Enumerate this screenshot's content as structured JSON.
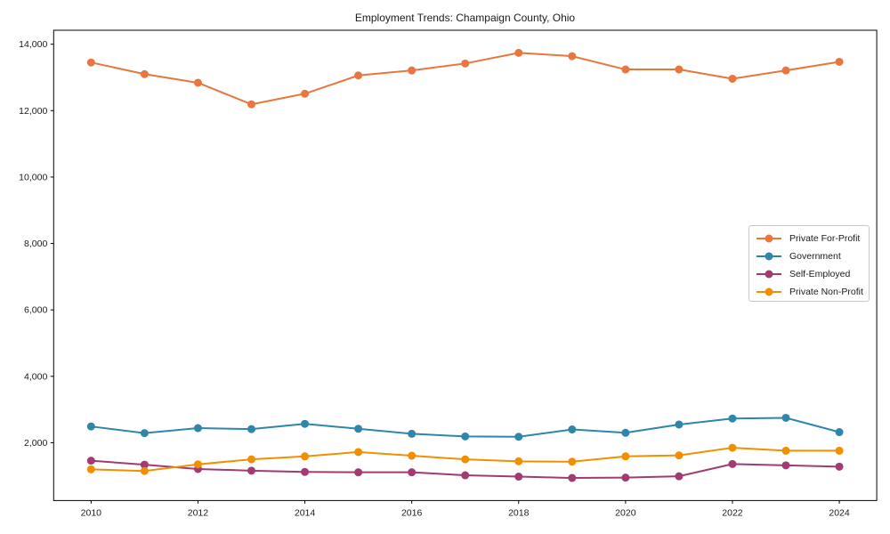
{
  "figure": {
    "background_color": "#ffffff",
    "spine_color": "#000000",
    "text_color": "#1a1a1a"
  },
  "chart_data": {
    "type": "line",
    "title": "Employment Trends: Champaign County, Ohio",
    "xlabel": "",
    "ylabel": "",
    "grid": false,
    "legend_position": "center right",
    "xlim": [
      2009.3,
      2024.7
    ],
    "ylim": [
      260,
      14420
    ],
    "x": [
      2010,
      2011,
      2012,
      2013,
      2014,
      2015,
      2016,
      2017,
      2018,
      2019,
      2020,
      2021,
      2022,
      2023,
      2024
    ],
    "x_ticks": [
      2010,
      2012,
      2014,
      2016,
      2018,
      2020,
      2022,
      2024
    ],
    "x_tick_labels": [
      "2010",
      "2012",
      "2014",
      "2016",
      "2018",
      "2020",
      "2022",
      "2024"
    ],
    "y_ticks": [
      2000,
      4000,
      6000,
      8000,
      10000,
      12000,
      14000
    ],
    "y_tick_labels": [
      "2,000",
      "4,000",
      "6,000",
      "8,000",
      "10,000",
      "12,000",
      "14,000"
    ],
    "series": [
      {
        "name": "Private For-Profit",
        "color": "#E8773D",
        "values": [
          13450,
          13100,
          12840,
          12190,
          12510,
          13060,
          13210,
          13420,
          13740,
          13640,
          13240,
          13240,
          12960,
          13210,
          13470
        ]
      },
      {
        "name": "Government",
        "color": "#2E86AB",
        "values": [
          2490,
          2290,
          2440,
          2410,
          2570,
          2420,
          2270,
          2190,
          2180,
          2400,
          2300,
          2550,
          2730,
          2750,
          2320
        ]
      },
      {
        "name": "Self-Employed",
        "color": "#A23B72",
        "values": [
          1460,
          1340,
          1210,
          1160,
          1120,
          1110,
          1110,
          1020,
          980,
          940,
          950,
          990,
          1360,
          1320,
          1280
        ]
      },
      {
        "name": "Private Non-Profit",
        "color": "#F18F01",
        "values": [
          1200,
          1150,
          1350,
          1500,
          1590,
          1720,
          1610,
          1500,
          1440,
          1430,
          1590,
          1620,
          1850,
          1760,
          1760
        ]
      }
    ]
  }
}
